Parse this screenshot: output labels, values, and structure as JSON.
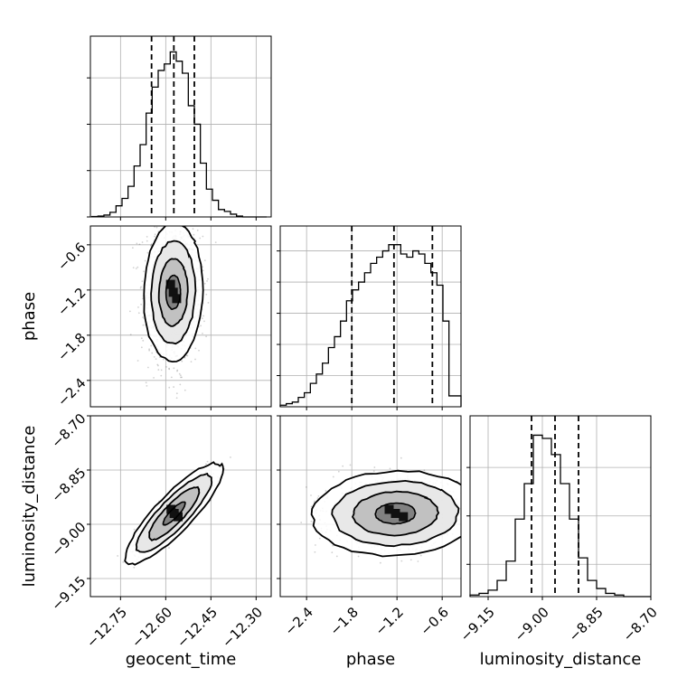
{
  "chart_data": {
    "type": "corner",
    "parameters": [
      {
        "name": "geocent_time",
        "label": "geocent_time",
        "range": [
          -12.85,
          -12.25
        ],
        "ticks": [
          -12.75,
          -12.6,
          -12.45,
          -12.3
        ],
        "tick_labels": [
          "−12.75",
          "−12.60",
          "−12.45",
          "−12.30"
        ],
        "quantiles": [
          -12.647,
          -12.573,
          -12.505
        ],
        "hist_x": [
          -12.835,
          -12.815,
          -12.795,
          -12.775,
          -12.755,
          -12.735,
          -12.715,
          -12.695,
          -12.675,
          -12.655,
          -12.635,
          -12.615,
          -12.595,
          -12.575,
          -12.555,
          -12.535,
          -12.515,
          -12.495,
          -12.475,
          -12.455,
          -12.435,
          -12.415,
          -12.395,
          -12.375,
          -12.355,
          -12.335,
          -12.315,
          -12.295,
          -12.275
        ],
        "hist_y": [
          0.5,
          1,
          2,
          5,
          12,
          20,
          33,
          55,
          78,
          112,
          140,
          158,
          165,
          178,
          168,
          155,
          120,
          100,
          58,
          30,
          18,
          8,
          6,
          3,
          1,
          0,
          0,
          0,
          0
        ],
        "hist_ymax": 195,
        "y_tick_values": [
          0,
          50,
          100,
          150
        ]
      },
      {
        "name": "phase",
        "label": "phase",
        "range": [
          -2.75,
          -0.35
        ],
        "ticks": [
          -2.4,
          -1.8,
          -1.2,
          -0.6
        ],
        "tick_labels": [
          "−2.4",
          "−1.8",
          "−1.2",
          "−0.6"
        ],
        "quantiles": [
          -1.8,
          -1.24,
          -0.73
        ],
        "hist_x": [
          -2.71,
          -2.63,
          -2.55,
          -2.47,
          -2.39,
          -2.31,
          -2.23,
          -2.15,
          -2.07,
          -1.99,
          -1.91,
          -1.83,
          -1.75,
          -1.67,
          -1.59,
          -1.51,
          -1.43,
          -1.35,
          -1.27,
          -1.19,
          -1.11,
          -1.03,
          -0.95,
          -0.87,
          -0.79,
          -0.71,
          -0.63,
          -0.55,
          -0.47,
          -0.39
        ],
        "hist_y": [
          1,
          2,
          3,
          6,
          9,
          15,
          21,
          28,
          38,
          45,
          55,
          68,
          75,
          80,
          86,
          92,
          96,
          100,
          104,
          104,
          98,
          96,
          100,
          98,
          92,
          86,
          78,
          55,
          7,
          7
        ],
        "hist_ymax": 116,
        "y_tick_values": [
          20,
          40,
          60,
          80,
          100
        ]
      },
      {
        "name": "luminosity_distance",
        "label": "luminosity_distance",
        "range": [
          -9.2,
          -8.7
        ],
        "ticks": [
          -9.15,
          -9.0,
          -8.85,
          -8.7
        ],
        "tick_labels": [
          "−9.15",
          "−9.00",
          "−8.85",
          "−8.70"
        ],
        "quantiles": [
          -9.03,
          -8.965,
          -8.9
        ],
        "hist_x": [
          -9.1875,
          -9.1625,
          -9.1375,
          -9.1125,
          -9.0875,
          -9.0625,
          -9.0375,
          -9.0125,
          -8.9875,
          -8.9625,
          -8.9375,
          -8.9125,
          -8.8875,
          -8.8625,
          -8.8375,
          -8.8125,
          -8.7875,
          -8.7625,
          -8.7375,
          -8.7125
        ],
        "hist_y": [
          1,
          2,
          4,
          10,
          22,
          48,
          70,
          100,
          98,
          88,
          70,
          48,
          24,
          10,
          5,
          2,
          1,
          0,
          0,
          0
        ],
        "hist_ymax": 112,
        "y_tick_values": [
          20,
          50,
          80
        ]
      }
    ],
    "pairs": [
      {
        "x": "geocent_time",
        "y": "phase",
        "x_mean": -12.575,
        "y_mean": -1.23,
        "x_sd": 0.045,
        "y_sd": 0.42,
        "rho": 0.05,
        "contour_scales": [
          1.55,
          1.15,
          0.75,
          0.38
        ]
      },
      {
        "x": "geocent_time",
        "y": "luminosity_distance",
        "x_mean": -12.572,
        "y_mean": -8.97,
        "x_sd": 0.052,
        "y_sd": 0.045,
        "rho": 0.86,
        "contour_scales": [
          2.2,
          1.7,
          1.15,
          0.5
        ]
      },
      {
        "x": "phase",
        "y": "luminosity_distance",
        "x_mean": -1.22,
        "y_mean": -8.97,
        "x_sd": 0.42,
        "y_sd": 0.045,
        "rho": 0.05,
        "contour_scales": [
          1.85,
          1.4,
          0.95,
          0.45
        ]
      }
    ],
    "grid": true,
    "quantile_line_style": "dashed"
  }
}
